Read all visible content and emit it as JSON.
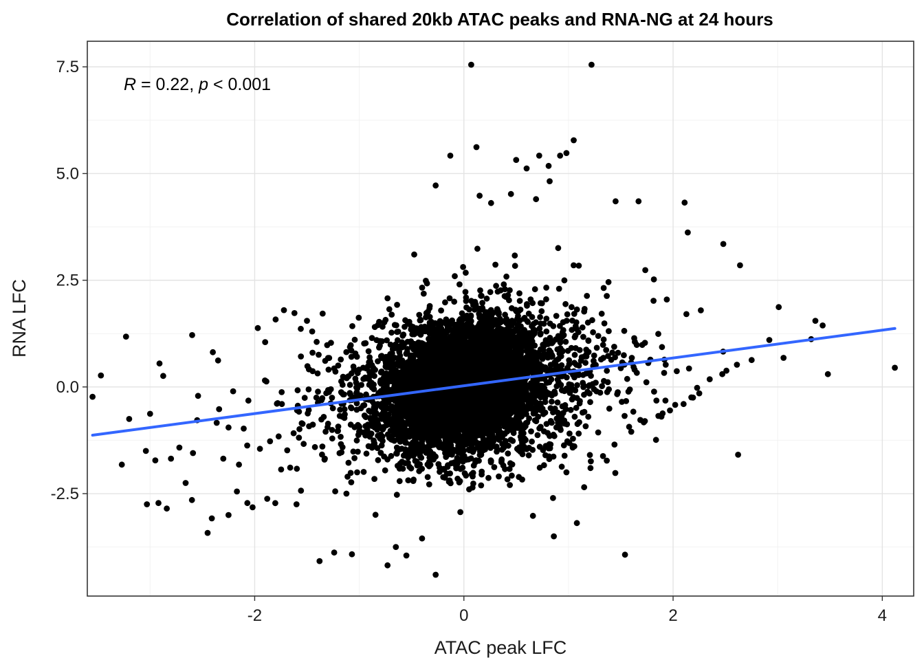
{
  "chart_data": {
    "type": "scatter",
    "title": "Correlation of shared 20kb ATAC peaks and RNA-NG  at 24 hours",
    "xlabel": "ATAC peak LFC",
    "ylabel": "RNA LFC",
    "xlim": [
      -3.6,
      4.3
    ],
    "ylim": [
      -4.9,
      8.1
    ],
    "x_ticks": [
      -2,
      0,
      2,
      4
    ],
    "x_tick_labels": [
      "-2",
      "0",
      "2",
      "4"
    ],
    "y_ticks": [
      -2.5,
      0.0,
      2.5,
      5.0,
      7.5
    ],
    "y_tick_labels": [
      "-2.5",
      "0.0",
      "2.5",
      "5.0",
      "7.5"
    ],
    "grid": true,
    "point_color": "#000000",
    "fit_line_color": "#3366FF",
    "annotation": {
      "r_symbol": "R",
      "r_text": " = 0.22, ",
      "p_symbol": "p",
      "p_text": " < 0.001"
    },
    "fit_line": {
      "x": [
        -3.55,
        4.12
      ],
      "y": [
        -1.13,
        1.37
      ]
    },
    "points": {
      "x": [
        0.07,
        1.22,
        1.05,
        0.92,
        0.12,
        -0.13,
        0.72,
        0.5,
        0.81,
        0.6,
        0.98,
        -0.27,
        0.15,
        0.45,
        0.82,
        0.26,
        0.69,
        1.45,
        1.67,
        2.11,
        2.14,
        2.48,
        2.64,
        1.94,
        3.01,
        3.36,
        3.43,
        3.32,
        3.48,
        4.12,
        2.92,
        1.54,
        1.08,
        0.86,
        0.66,
        -0.27,
        -0.73,
        -0.65,
        -0.55,
        -0.4,
        -1.38,
        -1.24,
        -1.07,
        -1.6,
        -1.88,
        -2.02,
        -2.17,
        -2.25,
        -2.07,
        -2.45,
        -2.41,
        -2.6,
        -2.66,
        -2.59,
        -2.8,
        -2.84,
        -3.03,
        -2.92,
        -3.27,
        -3.23,
        -3.47,
        -3.55,
        -3.0,
        -3.04,
        -2.95,
        -3.2,
        -2.72,
        -2.91,
        -2.35,
        -2.55,
        -2.34,
        -2.06,
        -1.78,
        -1.55,
        -1.41,
        -1.29,
        -1.16,
        -1.12,
        -1.05,
        -1.08,
        -0.95,
        -0.81,
        -0.66,
        -0.58,
        -0.42,
        -0.29,
        -0.19,
        -0.06,
        0.05,
        0.17,
        0.29,
        0.36,
        0.51,
        0.65,
        0.82,
        0.78,
        0.98,
        1.15,
        1.21,
        1.33,
        1.44,
        1.6,
        1.72,
        1.9,
        2.02,
        2.19,
        2.23,
        2.35,
        2.51,
        2.61,
        2.47,
        2.25,
        2.1,
        1.97,
        1.86,
        1.73,
        1.62,
        1.51,
        1.37,
        1.26,
        1.14,
        1.32,
        1.5,
        0.93,
        -1.72,
        -1.9,
        -1.97,
        -1.8,
        -1.62,
        -1.45,
        -1.5,
        -1.35,
        -2.15,
        -2.3,
        -1.95,
        -2.25,
        -1.74
      ],
      "y": [
        7.55,
        7.55,
        5.78,
        5.42,
        5.62,
        5.42,
        5.42,
        5.32,
        5.18,
        5.12,
        5.48,
        4.72,
        4.48,
        4.52,
        4.82,
        4.31,
        4.4,
        4.35,
        4.35,
        4.32,
        3.62,
        3.35,
        2.85,
        2.05,
        1.87,
        1.55,
        1.44,
        1.12,
        0.3,
        0.45,
        1.1,
        -3.93,
        -3.19,
        -3.5,
        -3.02,
        -4.4,
        -4.18,
        -3.75,
        -3.95,
        -3.55,
        -4.08,
        -3.88,
        -3.92,
        -2.75,
        -2.62,
        -2.82,
        -2.45,
        -3.0,
        -2.72,
        -3.42,
        -3.08,
        -2.65,
        -2.25,
        -1.55,
        -1.68,
        -2.85,
        -2.75,
        -2.72,
        -1.82,
        1.18,
        0.27,
        -0.23,
        -0.63,
        -1.5,
        -1.72,
        -0.75,
        -1.42,
        0.55,
        0.62,
        -0.78,
        -0.52,
        -0.32,
        -0.38,
        -0.85,
        -0.25,
        -0.12,
        0.05,
        0.22,
        0.4,
        -0.48,
        -0.67,
        -0.92,
        -1.02,
        -1.2,
        -1.55,
        -1.7,
        -1.92,
        -2.15,
        -2.4,
        -2.05,
        -1.88,
        -1.72,
        -1.45,
        -1.28,
        -1.15,
        -1.6,
        -2.0,
        -2.35,
        -1.9,
        -1.62,
        -1.35,
        -1.05,
        -0.83,
        -0.62,
        -0.42,
        -0.25,
        -0.02,
        0.18,
        0.38,
        0.52,
        0.3,
        -0.15,
        -0.4,
        -0.55,
        -0.68,
        -0.8,
        -0.58,
        -0.35,
        -0.12,
        0.1,
        0.28,
        0.02,
        0.44,
        0.72,
        1.8,
        1.05,
        1.38,
        1.58,
        1.73,
        1.3,
        1.55,
        1.72,
        -1.82,
        -1.68,
        -1.45,
        -0.95,
        -0.4
      ]
    },
    "cloud": {
      "core": {
        "mean_x": 0.0,
        "mean_y": 0.05,
        "sd_x": 0.3,
        "sd_y": 0.65,
        "n": 5200
      },
      "halo": {
        "mean_x": 0.0,
        "mean_y": 0.0,
        "sd_x": 0.62,
        "sd_y": 0.95,
        "n": 1900
      },
      "fringe": {
        "mean_x": 0.05,
        "mean_y": 0.0,
        "sd_x": 0.95,
        "sd_y": 1.05,
        "n": 450
      },
      "correlation": 0.22
    }
  }
}
